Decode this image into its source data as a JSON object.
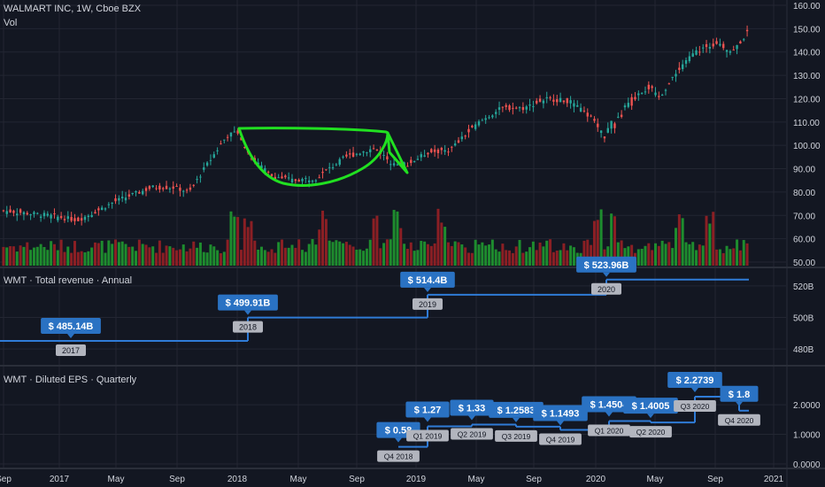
{
  "header": {
    "symbol_line": "WALMART INC, 1W, Cboe BZX",
    "vol_label": "Vol"
  },
  "colors": {
    "background": "#131722",
    "grid": "#232632",
    "up": "#26a69a",
    "down": "#ef5350",
    "vol_up": "#1e8c2e",
    "vol_down": "#8b1f24",
    "drawing": "#21e021",
    "flag": "#2a72c3",
    "tag_bg": "#b2b5be",
    "line": "#2f7bd6"
  },
  "chart_data": [
    {
      "type": "candlestick",
      "title": "WALMART INC, 1W, Cboe BZX",
      "y_ticks": [
        "160.00",
        "150.00",
        "140.00",
        "130.00",
        "120.00",
        "110.00",
        "100.00",
        "90.00",
        "80.00",
        "70.00",
        "60.00",
        "50.00"
      ],
      "ylim": [
        50,
        160
      ],
      "x_ticks": [
        "Sep",
        "2017",
        "May",
        "Sep",
        "2018",
        "May",
        "Sep",
        "2019",
        "May",
        "Sep",
        "2020",
        "May",
        "Sep",
        "2021"
      ],
      "price_path": [
        {
          "t": 0,
          "v": 72
        },
        {
          "t": 0.06,
          "v": 70
        },
        {
          "t": 0.1,
          "v": 68
        },
        {
          "t": 0.12,
          "v": 71
        },
        {
          "t": 0.15,
          "v": 76
        },
        {
          "t": 0.2,
          "v": 82
        },
        {
          "t": 0.23,
          "v": 82
        },
        {
          "t": 0.25,
          "v": 80
        },
        {
          "t": 0.27,
          "v": 90
        },
        {
          "t": 0.3,
          "v": 104
        },
        {
          "t": 0.315,
          "v": 106
        },
        {
          "t": 0.33,
          "v": 96
        },
        {
          "t": 0.36,
          "v": 87
        },
        {
          "t": 0.39,
          "v": 85
        },
        {
          "t": 0.42,
          "v": 86
        },
        {
          "t": 0.46,
          "v": 95
        },
        {
          "t": 0.5,
          "v": 99
        },
        {
          "t": 0.52,
          "v": 93
        },
        {
          "t": 0.545,
          "v": 92
        },
        {
          "t": 0.57,
          "v": 97
        },
        {
          "t": 0.6,
          "v": 98
        },
        {
          "t": 0.64,
          "v": 110
        },
        {
          "t": 0.67,
          "v": 116
        },
        {
          "t": 0.7,
          "v": 116
        },
        {
          "t": 0.73,
          "v": 120
        },
        {
          "t": 0.76,
          "v": 119
        },
        {
          "t": 0.79,
          "v": 112
        },
        {
          "t": 0.81,
          "v": 104
        },
        {
          "t": 0.83,
          "v": 113
        },
        {
          "t": 0.85,
          "v": 122
        },
        {
          "t": 0.87,
          "v": 125
        },
        {
          "t": 0.88,
          "v": 120
        },
        {
          "t": 0.91,
          "v": 133
        },
        {
          "t": 0.93,
          "v": 140
        },
        {
          "t": 0.96,
          "v": 144
        },
        {
          "t": 0.98,
          "v": 140
        },
        {
          "t": 1.0,
          "v": 148
        }
      ],
      "volume_spikes": [
        0.31,
        0.33,
        0.43,
        0.5,
        0.53,
        0.59,
        0.8,
        0.82,
        0.91,
        0.95
      ]
    },
    {
      "type": "step",
      "title": "WMT · Total revenue · Annual",
      "y_ticks": [
        "520B",
        "500B",
        "480B"
      ],
      "ylim": [
        470,
        530
      ],
      "points": [
        {
          "label": "$ 485.14B",
          "value": 485.14,
          "period": "2017"
        },
        {
          "label": "$ 499.91B",
          "value": 499.91,
          "period": "2018"
        },
        {
          "label": "$ 514.4B",
          "value": 514.4,
          "period": "2019"
        },
        {
          "label": "$ 523.96B",
          "value": 523.96,
          "period": "2020"
        }
      ]
    },
    {
      "type": "step",
      "title": "WMT · Diluted EPS · Quarterly",
      "y_ticks": [
        "2.0000",
        "1.0000",
        "0.0000"
      ],
      "ylim": [
        0,
        2.9
      ],
      "points": [
        {
          "label": "$ 0.58",
          "value": 0.58,
          "period": "Q4 2018"
        },
        {
          "label": "$ 1.27",
          "value": 1.27,
          "period": "Q1 2019"
        },
        {
          "label": "$ 1.33",
          "value": 1.33,
          "period": "Q2 2019"
        },
        {
          "label": "$ 1.2583",
          "value": 1.2583,
          "period": "Q3 2019"
        },
        {
          "label": "$ 1.1493",
          "value": 1.1493,
          "period": "Q4 2019"
        },
        {
          "label": "$ 1.4504",
          "value": 1.4504,
          "period": "Q1 2020"
        },
        {
          "label": "$ 1.4005",
          "value": 1.4005,
          "period": "Q2 2020"
        },
        {
          "label": "$ 2.2739",
          "value": 2.2739,
          "period": "Q3 2020"
        },
        {
          "label": "$ 1.8",
          "value": 1.8,
          "period": "Q4 2020"
        }
      ]
    }
  ]
}
